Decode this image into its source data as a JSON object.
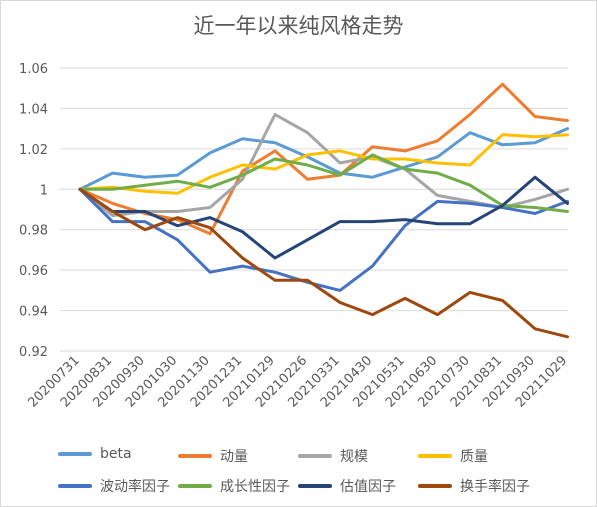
{
  "chart_data": {
    "type": "line",
    "title": "近一年以来纯风格走势",
    "xlabel": "",
    "ylabel": "",
    "categories": [
      "20200731",
      "20200831",
      "20200930",
      "20201030",
      "20201130",
      "20201231",
      "20210129",
      "20210226",
      "20210331",
      "20210430",
      "20210531",
      "20210630",
      "20210730",
      "20210831",
      "20210930",
      "20211029"
    ],
    "ylim": [
      0.92,
      1.06
    ],
    "yticks": [
      0.92,
      0.94,
      0.96,
      0.98,
      1.0,
      1.02,
      1.04,
      1.06
    ],
    "ytick_labels": [
      "0.92",
      "0.94",
      "0.96",
      "0.98",
      "1",
      "1.02",
      "1.04",
      "1.06"
    ],
    "grid": "horizontal",
    "legend_position": "bottom",
    "series": [
      {
        "name": "beta",
        "color": "#5b9bd5",
        "values": [
          1.0,
          1.008,
          1.006,
          1.007,
          1.018,
          1.025,
          1.023,
          1.016,
          1.008,
          1.006,
          1.011,
          1.016,
          1.028,
          1.022,
          1.023,
          1.03
        ]
      },
      {
        "name": "动量",
        "color": "#ed7d31",
        "values": [
          1.0,
          0.993,
          0.988,
          0.985,
          0.978,
          1.009,
          1.019,
          1.005,
          1.007,
          1.021,
          1.019,
          1.024,
          1.037,
          1.052,
          1.036,
          1.034
        ]
      },
      {
        "name": "规模",
        "color": "#a5a5a5",
        "values": [
          1.0,
          0.987,
          0.989,
          0.989,
          0.991,
          1.005,
          1.037,
          1.028,
          1.013,
          1.016,
          1.01,
          0.997,
          0.994,
          0.991,
          0.995,
          1.0
        ]
      },
      {
        "name": "质量",
        "color": "#ffc000",
        "values": [
          1.0,
          1.001,
          0.999,
          0.998,
          1.006,
          1.012,
          1.01,
          1.017,
          1.019,
          1.015,
          1.015,
          1.013,
          1.012,
          1.027,
          1.026,
          1.027
        ]
      },
      {
        "name": "波动率因子",
        "color": "#4472c4",
        "values": [
          1.0,
          0.984,
          0.984,
          0.975,
          0.959,
          0.962,
          0.959,
          0.954,
          0.95,
          0.962,
          0.982,
          0.994,
          0.993,
          0.991,
          0.988,
          0.994
        ]
      },
      {
        "name": "成长性因子",
        "color": "#70ad47",
        "values": [
          1.0,
          1.0,
          1.002,
          1.004,
          1.001,
          1.007,
          1.015,
          1.012,
          1.007,
          1.017,
          1.01,
          1.008,
          1.002,
          0.992,
          0.991,
          0.989
        ]
      },
      {
        "name": "估值因子",
        "color": "#264478",
        "values": [
          1.0,
          0.989,
          0.989,
          0.982,
          0.986,
          0.979,
          0.966,
          0.975,
          0.984,
          0.984,
          0.985,
          0.983,
          0.983,
          0.992,
          1.006,
          0.993
        ]
      },
      {
        "name": "换手率因子",
        "color": "#9e480e",
        "values": [
          1.0,
          0.989,
          0.98,
          0.986,
          0.981,
          0.966,
          0.955,
          0.955,
          0.944,
          0.938,
          0.946,
          0.938,
          0.949,
          0.945,
          0.931,
          0.927
        ]
      }
    ]
  }
}
